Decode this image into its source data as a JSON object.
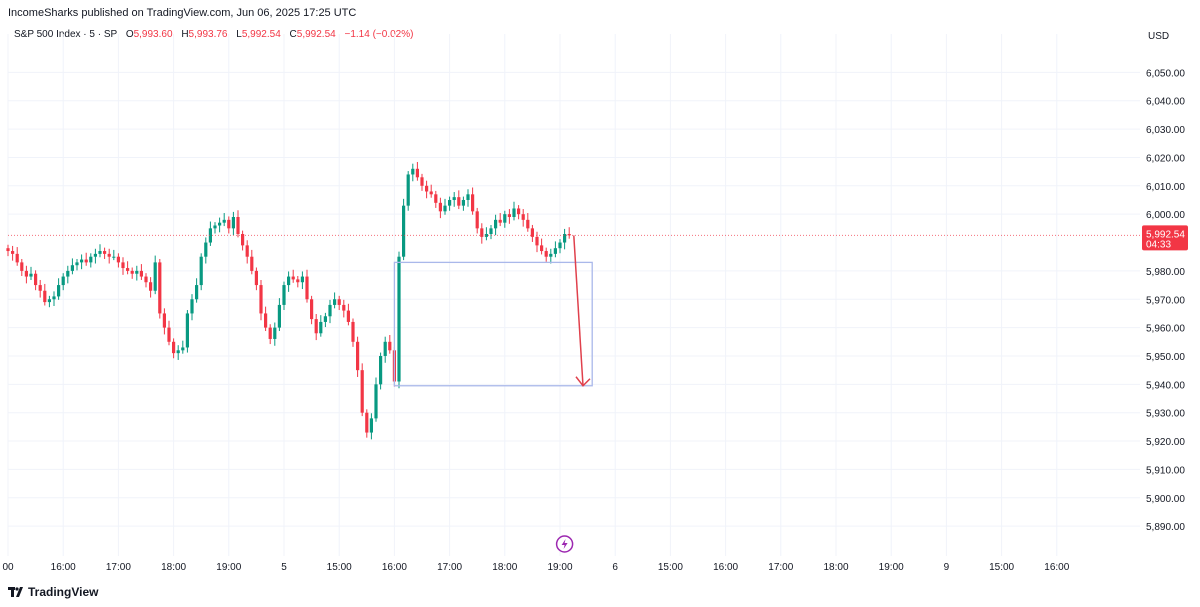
{
  "header": {
    "published": "IncomeSharks published on TradingView.com, Jun 06, 2025 17:25 UTC"
  },
  "legend": {
    "symbol": "S&P 500 Index · 5 · SP",
    "open_label": "O",
    "open": "5,993.60",
    "high_label": "H",
    "high": "5,993.76",
    "low_label": "L",
    "low": "5,992.54",
    "close_label": "C",
    "close": "5,992.54",
    "change": "−1.14 (−0.02%)"
  },
  "footer": {
    "brand": "TradingView"
  },
  "colors": {
    "up": "#089981",
    "down": "#f23645",
    "grid": "#f0f3fa",
    "box": "#aab8ea",
    "arrow": "#e0404c"
  },
  "chart_data": {
    "type": "candlestick",
    "currency": "USD",
    "ylim": [
      5883,
      6060
    ],
    "y_ticks": [
      "6,050.00",
      "6,040.00",
      "6,030.00",
      "6,020.00",
      "6,010.00",
      "6,000.00",
      "5,980.00",
      "5,970.00",
      "5,960.00",
      "5,950.00",
      "5,940.00",
      "5,930.00",
      "5,920.00",
      "5,910.00",
      "5,900.00",
      "5,890.00"
    ],
    "y_tick_values": [
      6050,
      6040,
      6030,
      6020,
      6010,
      6000,
      5980,
      5970,
      5960,
      5950,
      5940,
      5930,
      5920,
      5910,
      5900,
      5890
    ],
    "x_ticks": [
      "00",
      "16:00",
      "17:00",
      "18:00",
      "19:00",
      "5",
      "15:00",
      "16:00",
      "17:00",
      "18:00",
      "19:00",
      "6",
      "15:00",
      "16:00",
      "17:00",
      "18:00",
      "19:00",
      "9",
      "15:00",
      "16:00"
    ],
    "x_tick_index": [
      0,
      12,
      24,
      36,
      48,
      60,
      72,
      84,
      96,
      108,
      120,
      132,
      144,
      156,
      168,
      180,
      192,
      204,
      216,
      228
    ],
    "last_price": "5,992.54",
    "countdown": "04:33",
    "last_value": 5992.54,
    "closes": [
      5987,
      5986,
      5983,
      5980,
      5978,
      5979,
      5975,
      5973,
      5969,
      5970,
      5971,
      5975,
      5978,
      5980,
      5982,
      5983,
      5984,
      5983,
      5985,
      5986,
      5987,
      5986,
      5985,
      5985,
      5983,
      5981,
      5980,
      5979,
      5980,
      5978,
      5976,
      5973,
      5983,
      5965,
      5960,
      5955,
      5951,
      5952,
      5953,
      5965,
      5970,
      5975,
      5985,
      5990,
      5995,
      5996,
      5997,
      5998,
      5995,
      5999,
      5993,
      5989,
      5985,
      5980,
      5975,
      5965,
      5960,
      5956,
      5960,
      5968,
      5975,
      5978,
      5977,
      5976,
      5978,
      5970,
      5963,
      5958,
      5962,
      5964,
      5968,
      5970,
      5968,
      5966,
      5962,
      5955,
      5945,
      5930,
      5923,
      5928,
      5940,
      5950,
      5955,
      5952,
      5941,
      5985,
      6003,
      6014,
      6016,
      6013,
      6010,
      6008,
      6007,
      6004,
      6001,
      6003,
      6005,
      6006,
      6003,
      6005,
      6007,
      6001,
      5995,
      5992,
      5993,
      5995,
      5998,
      5997,
      6000,
      5999,
      6002,
      6000,
      5998,
      5995,
      5992,
      5989,
      5987,
      5985,
      5986,
      5988,
      5990,
      5993,
      5992.54
    ],
    "box": {
      "from_index": 84,
      "to_index": 127,
      "top": 5983,
      "bottom": 5939.5
    },
    "arrow": {
      "from_index": 123,
      "from_value": 5992.5,
      "to_index": 125,
      "to_value": 5939.5
    },
    "event_marker_index": 121
  }
}
